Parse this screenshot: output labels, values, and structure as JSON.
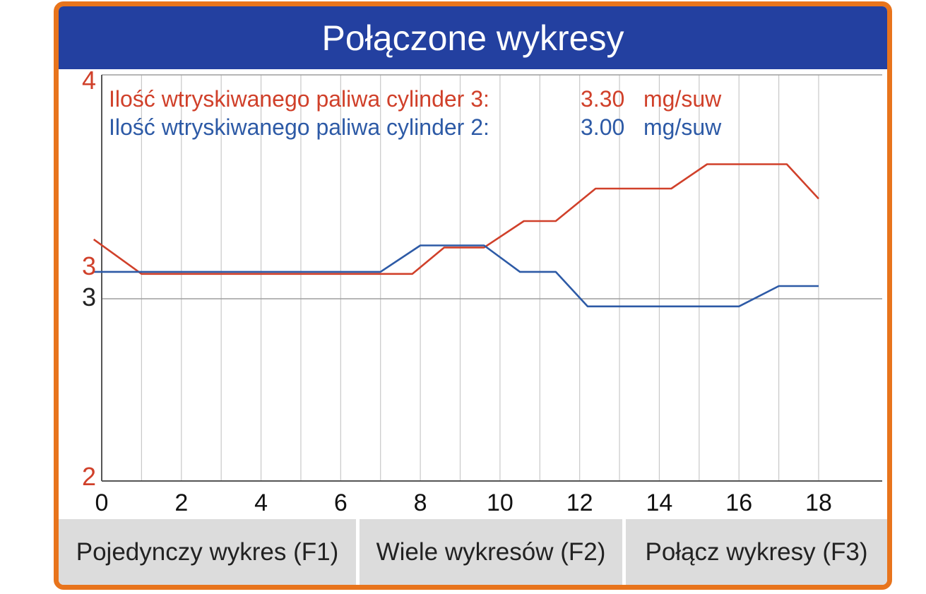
{
  "title": "Połączone wykresy",
  "colors": {
    "frame": "#e8741c",
    "titlebar": "#2340a0",
    "series_red": "#d0402a",
    "series_blue": "#2d5aa6",
    "grid": "#c8c8c8",
    "axis": "#555555"
  },
  "chart_data": {
    "type": "line",
    "xlim": [
      0,
      18
    ],
    "x_ticks": [
      "0",
      "2",
      "4",
      "6",
      "8",
      "10",
      "12",
      "14",
      "16",
      "18"
    ],
    "grid": true,
    "axes": [
      {
        "color": "#d0402a",
        "range": [
          2,
          4
        ],
        "tick_labels": [
          "4",
          "3",
          "2"
        ]
      },
      {
        "color": "#222222",
        "tick_labels": [
          "3"
        ]
      }
    ],
    "series": [
      {
        "name": "Ilość wtryskiwanego paliwa cylinder 3:",
        "value": "3.30",
        "unit": "mg/suw",
        "color": "#d0402a",
        "x": [
          -0.2,
          1.0,
          7.8,
          8.6,
          9.6,
          10.6,
          11.4,
          12.4,
          14.3,
          15.2,
          17.2,
          18.0
        ],
        "y": [
          3.19,
          3.02,
          3.02,
          3.15,
          3.15,
          3.28,
          3.28,
          3.44,
          3.44,
          3.56,
          3.56,
          3.39
        ]
      },
      {
        "name": "Ilość wtryskiwanego paliwa cylinder 2:",
        "value": "3.00",
        "unit": "mg/suw",
        "color": "#2d5aa6",
        "x": [
          -0.2,
          7.0,
          8.0,
          9.6,
          10.5,
          11.4,
          12.2,
          16.0,
          17.0,
          18.0
        ],
        "y": [
          3.03,
          3.03,
          3.16,
          3.16,
          3.03,
          3.03,
          2.86,
          2.86,
          2.96,
          2.96
        ]
      }
    ]
  },
  "buttons": [
    {
      "label": "Pojedynczy wykres (F1)"
    },
    {
      "label": "Wiele wykresów (F2)"
    },
    {
      "label": "Połącz wykresy (F3)"
    }
  ]
}
